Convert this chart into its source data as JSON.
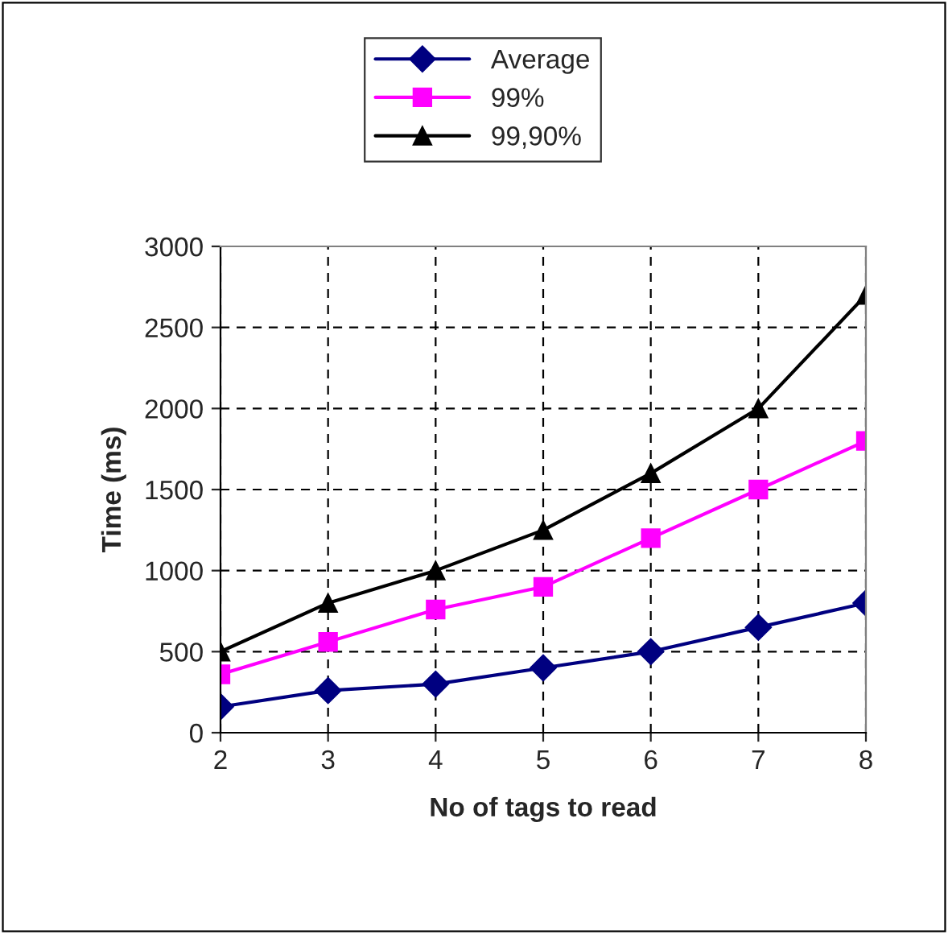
{
  "chart_data": {
    "type": "line",
    "xlabel": "No of tags to read",
    "ylabel": "Time (ms)",
    "x": [
      2,
      3,
      4,
      5,
      6,
      7,
      8
    ],
    "series": [
      {
        "name": "Average",
        "color": "#000080",
        "marker": "diamond",
        "values": [
          160,
          260,
          300,
          400,
          500,
          650,
          800
        ]
      },
      {
        "name": "99%",
        "color": "#ff00ff",
        "marker": "square",
        "values": [
          360,
          560,
          760,
          900,
          1200,
          1500,
          1800
        ]
      },
      {
        "name": "99,90%",
        "color": "#000000",
        "marker": "triangle",
        "values": [
          500,
          800,
          1000,
          1250,
          1600,
          2000,
          2700
        ]
      }
    ],
    "xlim": [
      2,
      8
    ],
    "xticks": [
      2,
      3,
      4,
      5,
      6,
      7,
      8
    ],
    "ylim": [
      0,
      3000
    ],
    "yticks": [
      0,
      500,
      1000,
      1500,
      2000,
      2500,
      3000
    ],
    "grid": true,
    "legend": "top"
  }
}
